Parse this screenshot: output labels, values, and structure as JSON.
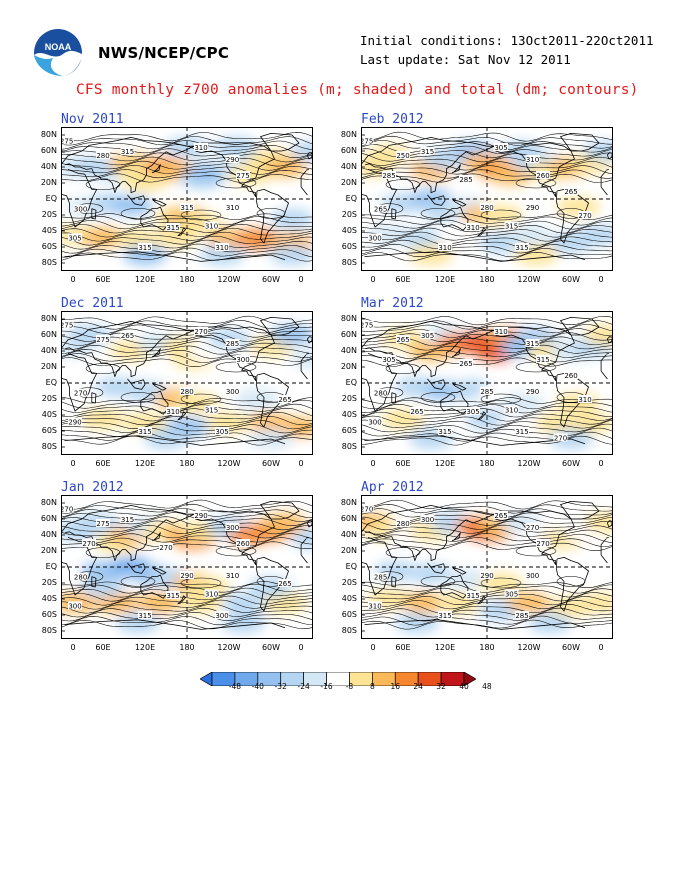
{
  "header": {
    "org": "NWS/NCEP/CPC",
    "initial_conditions": "Initial conditions: 13Oct2011-22Oct2011",
    "last_update": "Last update: Sat Nov 12 2011",
    "title": "CFS monthly z700 anomalies (m; shaded) and total (dm; contours)"
  },
  "lat_labels": [
    "80N",
    "60N",
    "40N",
    "20N",
    "EQ",
    "20S",
    "40S",
    "60S",
    "80S"
  ],
  "lon_labels": [
    "0",
    "60E",
    "120E",
    "180",
    "120W",
    "60W",
    "0"
  ],
  "panels": [
    {
      "title": "Nov 2011",
      "contour_labels": [
        "275",
        "280",
        "300",
        "315",
        "310",
        "305",
        "315",
        "310",
        "315",
        "310",
        "315",
        "310",
        "290",
        "275"
      ],
      "anomalies": [
        [
          20,
          40,
          -8
        ],
        [
          45,
          40,
          -16
        ],
        [
          75,
          35,
          -16
        ],
        [
          100,
          44,
          24
        ],
        [
          110,
          34,
          16
        ],
        [
          120,
          22,
          16
        ],
        [
          150,
          40,
          32
        ],
        [
          165,
          35,
          24
        ],
        [
          200,
          25,
          -16
        ],
        [
          210,
          32,
          -24
        ],
        [
          255,
          40,
          -8
        ],
        [
          270,
          30,
          16
        ],
        [
          290,
          40,
          16
        ],
        [
          300,
          50,
          16
        ],
        [
          320,
          40,
          24
        ],
        [
          360,
          60,
          -16
        ],
        [
          40,
          -10,
          -8
        ],
        [
          70,
          -5,
          -16
        ],
        [
          100,
          -8,
          -24
        ],
        [
          165,
          -22,
          16
        ],
        [
          180,
          -22,
          24
        ],
        [
          200,
          -30,
          16
        ],
        [
          20,
          -45,
          16
        ],
        [
          60,
          -48,
          24
        ],
        [
          110,
          -50,
          16
        ],
        [
          165,
          -48,
          16
        ],
        [
          240,
          -50,
          24
        ],
        [
          280,
          -50,
          32
        ],
        [
          330,
          -55,
          24
        ],
        [
          120,
          -70,
          -24
        ],
        [
          230,
          -70,
          -16
        ],
        [
          330,
          -70,
          -16
        ],
        [
          180,
          65,
          -16
        ],
        [
          250,
          65,
          -16
        ],
        [
          330,
          -25,
          -16
        ]
      ]
    },
    {
      "title": "Feb 2012",
      "contour_labels": [
        "275",
        "250",
        "265",
        "280",
        "290",
        "300",
        "310",
        "315",
        "310",
        "315",
        "315",
        "305",
        "310",
        "260",
        "270",
        "285",
        "285",
        "265"
      ],
      "anomalies": [
        [
          20,
          40,
          16
        ],
        [
          40,
          55,
          16
        ],
        [
          70,
          30,
          8
        ],
        [
          100,
          35,
          24
        ],
        [
          120,
          50,
          -16
        ],
        [
          160,
          60,
          -24
        ],
        [
          175,
          45,
          24
        ],
        [
          200,
          35,
          32
        ],
        [
          215,
          30,
          24
        ],
        [
          230,
          60,
          -16
        ],
        [
          250,
          45,
          -16
        ],
        [
          270,
          35,
          16
        ],
        [
          300,
          40,
          24
        ],
        [
          330,
          45,
          16
        ],
        [
          350,
          60,
          -16
        ],
        [
          60,
          -5,
          -16
        ],
        [
          100,
          0,
          -24
        ],
        [
          120,
          -15,
          -16
        ],
        [
          150,
          -10,
          -8
        ],
        [
          175,
          -20,
          24
        ],
        [
          200,
          -20,
          16
        ],
        [
          40,
          -45,
          -8
        ],
        [
          90,
          -50,
          -16
        ],
        [
          140,
          -48,
          8
        ],
        [
          200,
          -55,
          -16
        ],
        [
          240,
          -45,
          -8
        ],
        [
          300,
          -55,
          -16
        ],
        [
          340,
          -45,
          -16
        ],
        [
          100,
          -70,
          16
        ],
        [
          250,
          -70,
          16
        ],
        [
          310,
          -10,
          16
        ]
      ]
    },
    {
      "title": "Dec 2011",
      "contour_labels": [
        "275",
        "275",
        "270",
        "280",
        "300",
        "290",
        "310",
        "315",
        "315",
        "305",
        "265",
        "270",
        "285",
        "300",
        "265"
      ],
      "anomalies": [
        [
          15,
          45,
          -8
        ],
        [
          40,
          60,
          -16
        ],
        [
          70,
          30,
          8
        ],
        [
          100,
          40,
          16
        ],
        [
          140,
          50,
          -8
        ],
        [
          175,
          45,
          16
        ],
        [
          190,
          30,
          16
        ],
        [
          210,
          40,
          8
        ],
        [
          240,
          55,
          -16
        ],
        [
          270,
          35,
          8
        ],
        [
          300,
          45,
          16
        ],
        [
          330,
          60,
          -24
        ],
        [
          360,
          30,
          -8
        ],
        [
          80,
          -5,
          -16
        ],
        [
          120,
          -10,
          -16
        ],
        [
          165,
          -20,
          24
        ],
        [
          195,
          -25,
          16
        ],
        [
          60,
          -45,
          16
        ],
        [
          120,
          -50,
          16
        ],
        [
          180,
          -55,
          -24
        ],
        [
          240,
          -50,
          16
        ],
        [
          300,
          -50,
          24
        ],
        [
          340,
          -55,
          24
        ],
        [
          150,
          -70,
          -16
        ],
        [
          300,
          -70,
          -8
        ],
        [
          280,
          -20,
          -8
        ]
      ]
    },
    {
      "title": "Mar 2012",
      "contour_labels": [
        "275",
        "265",
        "280",
        "285",
        "290",
        "300",
        "305",
        "310",
        "315",
        "315",
        "305",
        "310",
        "315",
        "315",
        "310",
        "305",
        "265",
        "260",
        "265",
        "270"
      ],
      "anomalies": [
        [
          20,
          45,
          8
        ],
        [
          60,
          55,
          16
        ],
        [
          100,
          40,
          24
        ],
        [
          120,
          60,
          -8
        ],
        [
          140,
          50,
          32
        ],
        [
          170,
          50,
          40
        ],
        [
          195,
          40,
          40
        ],
        [
          210,
          55,
          32
        ],
        [
          230,
          45,
          -24
        ],
        [
          250,
          55,
          -24
        ],
        [
          270,
          40,
          16
        ],
        [
          300,
          40,
          -8
        ],
        [
          330,
          45,
          -16
        ],
        [
          350,
          60,
          16
        ],
        [
          80,
          -5,
          -16
        ],
        [
          120,
          -10,
          -24
        ],
        [
          160,
          -8,
          -16
        ],
        [
          200,
          -15,
          8
        ],
        [
          230,
          -25,
          -8
        ],
        [
          60,
          -45,
          16
        ],
        [
          120,
          -40,
          8
        ],
        [
          180,
          -45,
          -16
        ],
        [
          230,
          -50,
          8
        ],
        [
          280,
          -50,
          16
        ],
        [
          330,
          -50,
          16
        ],
        [
          100,
          -70,
          -16
        ],
        [
          300,
          -70,
          -16
        ],
        [
          310,
          -25,
          16
        ]
      ]
    },
    {
      "title": "Jan 2012",
      "contour_labels": [
        "270",
        "275",
        "280",
        "290",
        "310",
        "300",
        "315",
        "310",
        "315",
        "300",
        "315",
        "290",
        "300",
        "260",
        "265",
        "270",
        "270"
      ],
      "anomalies": [
        [
          20,
          45,
          -16
        ],
        [
          50,
          55,
          -16
        ],
        [
          80,
          30,
          16
        ],
        [
          100,
          40,
          24
        ],
        [
          120,
          50,
          -8
        ],
        [
          150,
          45,
          16
        ],
        [
          175,
          40,
          24
        ],
        [
          190,
          35,
          32
        ],
        [
          200,
          45,
          16
        ],
        [
          240,
          50,
          -16
        ],
        [
          270,
          40,
          32
        ],
        [
          300,
          45,
          32
        ],
        [
          320,
          55,
          24
        ],
        [
          360,
          35,
          -16
        ],
        [
          60,
          -5,
          -24
        ],
        [
          100,
          0,
          -32
        ],
        [
          130,
          -10,
          -24
        ],
        [
          160,
          -15,
          -16
        ],
        [
          190,
          -20,
          24
        ],
        [
          210,
          -25,
          16
        ],
        [
          20,
          -45,
          24
        ],
        [
          80,
          -45,
          24
        ],
        [
          140,
          -45,
          24
        ],
        [
          200,
          -45,
          16
        ],
        [
          260,
          -45,
          -16
        ],
        [
          320,
          -45,
          16
        ],
        [
          110,
          -70,
          -16
        ],
        [
          260,
          -70,
          -16
        ],
        [
          60,
          -25,
          -16
        ],
        [
          300,
          -25,
          -16
        ]
      ]
    },
    {
      "title": "Apr 2012",
      "contour_labels": [
        "270",
        "280",
        "285",
        "290",
        "300",
        "310",
        "315",
        "305",
        "315",
        "285",
        "300",
        "265",
        "270",
        "270"
      ],
      "anomalies": [
        [
          15,
          55,
          24
        ],
        [
          40,
          45,
          16
        ],
        [
          70,
          40,
          8
        ],
        [
          100,
          45,
          16
        ],
        [
          130,
          55,
          -16
        ],
        [
          165,
          50,
          32
        ],
        [
          185,
          45,
          40
        ],
        [
          200,
          50,
          24
        ],
        [
          230,
          55,
          -8
        ],
        [
          260,
          40,
          8
        ],
        [
          290,
          35,
          16
        ],
        [
          320,
          45,
          8
        ],
        [
          350,
          55,
          16
        ],
        [
          50,
          -5,
          -16
        ],
        [
          100,
          -8,
          -16
        ],
        [
          150,
          -15,
          -8
        ],
        [
          200,
          -20,
          16
        ],
        [
          40,
          -40,
          16
        ],
        [
          90,
          -45,
          24
        ],
        [
          140,
          -45,
          16
        ],
        [
          200,
          -55,
          -16
        ],
        [
          240,
          -45,
          24
        ],
        [
          300,
          -50,
          16
        ],
        [
          340,
          -45,
          16
        ],
        [
          80,
          -70,
          -16
        ],
        [
          270,
          -70,
          -16
        ]
      ]
    }
  ],
  "colorbar": {
    "levels": [
      "-48",
      "-40",
      "-32",
      "-24",
      "-16",
      "-8",
      "8",
      "16",
      "24",
      "32",
      "40",
      "48"
    ],
    "colors": [
      "#2c6fe0",
      "#4b8fe8",
      "#6fa9ec",
      "#94c1ef",
      "#b5d6f2",
      "#d4e7f5",
      "#ffffff",
      "#fde494",
      "#fbb959",
      "#f6872f",
      "#e8501c",
      "#c0161a",
      "#8e0a10"
    ]
  }
}
